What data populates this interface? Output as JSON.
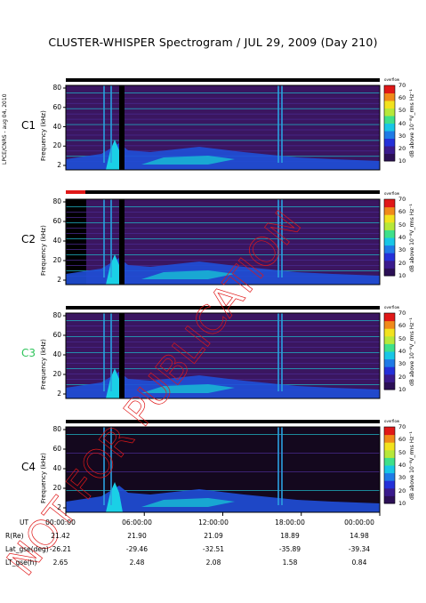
{
  "title": "CLUSTER-WHISPER Spectrogram / JUL 29, 2009 (Day 210)",
  "side_note": "LPCE/CNRS - aug 04, 2010",
  "watermark": "NOT FOR PUBLICATION",
  "colorbar": {
    "label": "dB above 10⁻⁸V_rms Hz⁻¹",
    "ticks": [
      "70",
      "60",
      "50",
      "40",
      "30",
      "20",
      "10"
    ],
    "colors": [
      "#2b0f55",
      "#3a1a8c",
      "#2430d8",
      "#1f7ae6",
      "#18c6e6",
      "#3fe08a",
      "#b6e83a",
      "#f2e21e",
      "#f08a1a",
      "#e01818"
    ],
    "top_label": "overflow"
  },
  "chart_data": [
    {
      "type": "heatmap",
      "panel": "C1",
      "ylabel": "Frequency (kHz)",
      "yticks": [
        "80",
        "60",
        "40",
        "20",
        "2"
      ],
      "ylim": [
        2,
        80
      ],
      "status_bar": "black",
      "label_color": "#000000"
    },
    {
      "type": "heatmap",
      "panel": "C2",
      "ylabel": "Frequency (kHz)",
      "yticks": [
        "80",
        "60",
        "40",
        "20",
        "2"
      ],
      "ylim": [
        2,
        80
      ],
      "status_bar": "black-red",
      "label_color": "#000000"
    },
    {
      "type": "heatmap",
      "panel": "C3",
      "ylabel": "Frequency (kHz)",
      "yticks": [
        "80",
        "60",
        "40",
        "20",
        "2"
      ],
      "ylim": [
        2,
        80
      ],
      "status_bar": "black",
      "label_color": "#2ec45a"
    },
    {
      "type": "heatmap",
      "panel": "C4",
      "ylabel": "Frequency (kHz)",
      "yticks": [
        "80",
        "60",
        "40",
        "20",
        "2"
      ],
      "ylim": [
        2,
        80
      ],
      "status_bar": "black",
      "label_color": "#000000"
    }
  ],
  "ephemeris": {
    "rows": [
      {
        "label": "UT",
        "values": [
          "00:00:00",
          "06:00:00",
          "12:00:00",
          "18:00:00",
          "00:00:00"
        ]
      },
      {
        "label": "R(Re)",
        "values": [
          "21.42",
          "21.90",
          "21.09",
          "18.89",
          "14.98"
        ]
      },
      {
        "label": "Lat_gse(deg)",
        "values": [
          "-26.21",
          "-29.46",
          "-32.51",
          "-35.89",
          "-39.34"
        ]
      },
      {
        "label": "LT_gse(h)",
        "values": [
          "2.65",
          "2.48",
          "2.08",
          "1.58",
          "0.84"
        ]
      }
    ]
  }
}
